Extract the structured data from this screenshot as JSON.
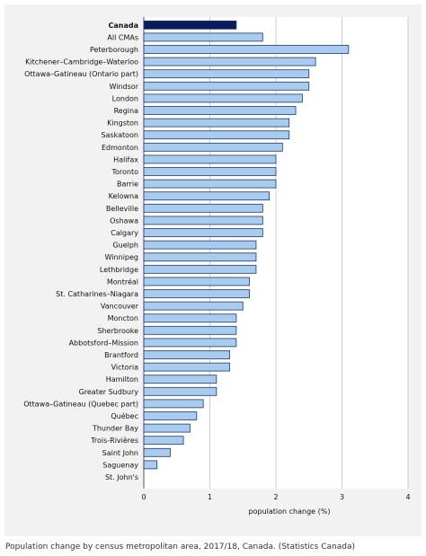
{
  "figure": {
    "caption": "Population change by census metropolitan area, 2017/18, Canada. (Statistics Canada)"
  },
  "colors": {
    "figure_background": "#f2f2f2",
    "plot_background": "#ffffff",
    "bar_fill": "#a9cbef",
    "bar_stroke": "#1f3b66",
    "highlight_bar_fill": "#0a1a5c",
    "grid": "#cccccc",
    "text": "#111111"
  },
  "chart_data": {
    "type": "bar",
    "orientation": "horizontal",
    "title": "",
    "xlabel": "population change (%)",
    "ylabel": "",
    "xlim": [
      0,
      4
    ],
    "xticks": [
      0,
      1,
      2,
      3,
      4
    ],
    "grid": true,
    "legend": "none",
    "highlight_category": "Canada",
    "categories": [
      "Canada",
      "All CMAs",
      "Peterborough",
      "Kitchener–Cambridge–Waterloo",
      "Ottawa–Gatineau (Ontario part)",
      "Windsor",
      "London",
      "Regina",
      "Kingston",
      "Saskatoon",
      "Edmonton",
      "Halifax",
      "Toronto",
      "Barrie",
      "Kelowna",
      "Belleville",
      "Oshawa",
      "Calgary",
      "Guelph",
      "Winnipeg",
      "Lethbridge",
      "Montréal",
      "St. Catharines–Niagara",
      "Vancouver",
      "Moncton",
      "Sherbrooke",
      "Abbotsford–Mission",
      "Brantford",
      "Victoria",
      "Hamilton",
      "Greater Sudbury",
      "Ottawa–Gatineau (Quebec part)",
      "Québec",
      "Thunder Bay",
      "Trois-Rivières",
      "Saint John",
      "Saguenay",
      "St. John's"
    ],
    "values": [
      1.4,
      1.8,
      3.1,
      2.6,
      2.5,
      2.5,
      2.4,
      2.3,
      2.2,
      2.2,
      2.1,
      2.0,
      2.0,
      2.0,
      1.9,
      1.8,
      1.8,
      1.8,
      1.7,
      1.7,
      1.7,
      1.6,
      1.6,
      1.5,
      1.4,
      1.4,
      1.4,
      1.3,
      1.3,
      1.1,
      1.1,
      0.9,
      0.8,
      0.7,
      0.6,
      0.4,
      0.2,
      0.0
    ]
  }
}
